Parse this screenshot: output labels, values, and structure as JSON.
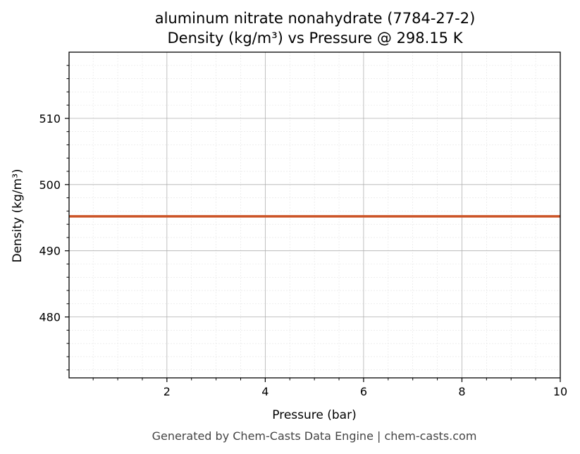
{
  "chart_data": {
    "type": "line",
    "title": "aluminum nitrate nonahydrate (7784-27-2)",
    "subtitle": "Density (kg/m³) vs Pressure @ 298.15 K",
    "xlabel": "Pressure (bar)",
    "ylabel": "Density (kg/m³)",
    "xlim": [
      0.01,
      10
    ],
    "ylim": [
      470.8,
      520
    ],
    "x_ticks": [
      2,
      4,
      6,
      8,
      10
    ],
    "y_ticks": [
      480,
      490,
      500,
      510
    ],
    "grid": true,
    "series": [
      {
        "color": "#cc5427",
        "x": [
          0.01,
          1,
          2,
          3,
          4,
          5,
          6,
          7,
          8,
          9,
          10
        ],
        "values": [
          495.2,
          495.2,
          495.2,
          495.2,
          495.2,
          495.2,
          495.2,
          495.2,
          495.2,
          495.2,
          495.2
        ]
      }
    ]
  },
  "footer": "Generated by Chem-Casts Data Engine | chem-casts.com"
}
